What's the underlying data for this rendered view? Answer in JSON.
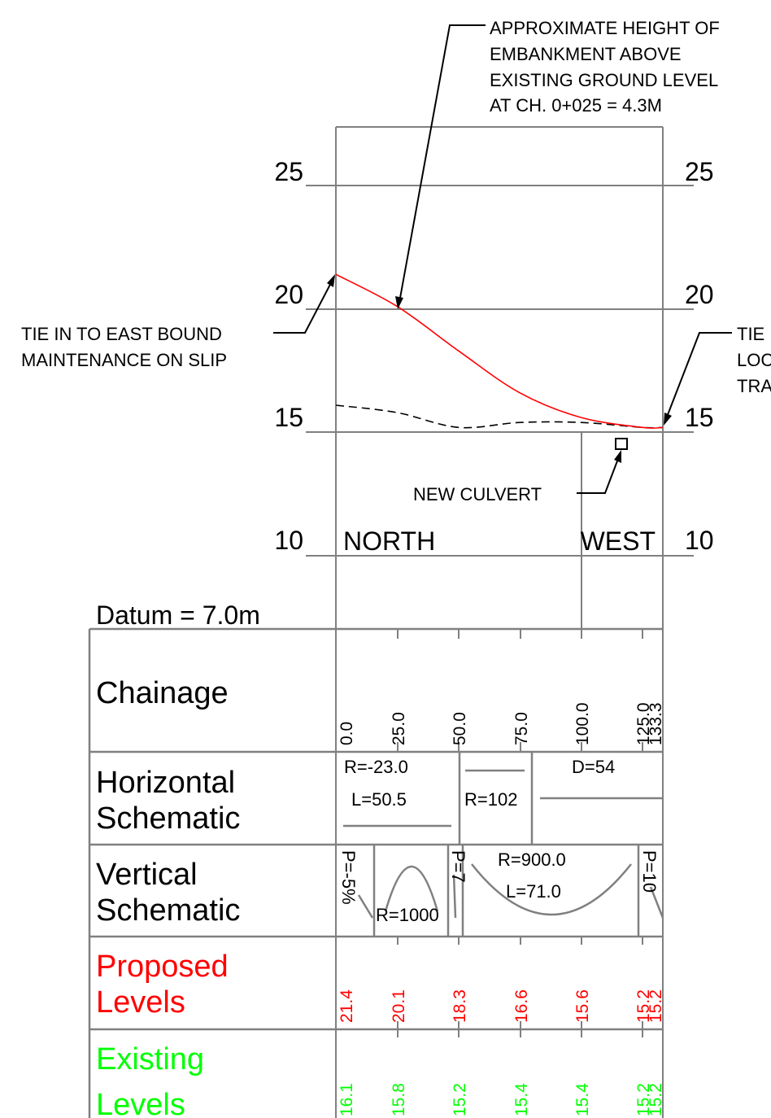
{
  "annotations": {
    "embankment_height": [
      "APPROXIMATE HEIGHT OF",
      "EMBANKMENT ABOVE",
      "EXISTING GROUND LEVEL",
      "AT CH. 0+025 = 4.3M"
    ],
    "tie_in_east": [
      "TIE IN TO EAST BOUND",
      "MAINTENANCE ON SLIP"
    ],
    "tie_in_right": [
      "TIE",
      "LOC",
      "TRA"
    ],
    "new_culvert": "NEW CULVERT",
    "direction_left": "NORTH",
    "direction_right": "WEST",
    "datum": "Datum = 7.0m"
  },
  "elevation_axis": {
    "ticks": [
      "25",
      "20",
      "15",
      "10"
    ]
  },
  "table": {
    "row_labels": {
      "chainage": [
        "Chainage"
      ],
      "horizontal": [
        "Horizontal",
        "Schematic"
      ],
      "vertical": [
        "Vertical",
        "Schematic"
      ],
      "proposed": [
        "Proposed",
        "Levels"
      ],
      "existing": [
        "Existing",
        "Levels"
      ]
    },
    "chainage_values": [
      "0.0",
      "25.0",
      "50.0",
      "75.0",
      "100.0",
      "125.0",
      "133.3"
    ],
    "horizontal_schematic": {
      "curve1_radius": "R=-23.0",
      "curve1_length": "L=50.5",
      "curve2_radius": "R=102",
      "deflection": "D=54"
    },
    "vertical_schematic": {
      "grade1": "P=-5%",
      "curve1_radius": "R=1000",
      "grade2": "P=7",
      "curve2_radius": "R=900.0",
      "curve2_length": "L=71.0",
      "grade3": "P=10"
    },
    "proposed_levels": [
      "21.4",
      "20.1",
      "18.3",
      "16.6",
      "15.6",
      "15.2",
      "15.2"
    ],
    "existing_levels": [
      "16.1",
      "15.8",
      "15.2",
      "15.4",
      "15.4",
      "15.2",
      "15.2"
    ]
  },
  "colors": {
    "proposed": "#ff0000",
    "existing": "#00ff00",
    "grid": "#808080",
    "ink": "#000000"
  },
  "chart_data": {
    "type": "line",
    "x_range": [
      0,
      133.3
    ],
    "ylim": [
      10,
      25
    ],
    "series": [
      {
        "style": "solid red",
        "x": [
          0,
          25,
          50,
          75,
          100,
          125,
          133.3
        ],
        "y": [
          21.4,
          20.1,
          18.3,
          16.6,
          15.6,
          15.2,
          15.2
        ]
      },
      {
        "style": "dashed black",
        "x": [
          0,
          25,
          50,
          75,
          100,
          125,
          133.3
        ],
        "y": [
          16.1,
          15.8,
          15.2,
          15.4,
          15.4,
          15.2,
          15.2
        ]
      }
    ]
  }
}
